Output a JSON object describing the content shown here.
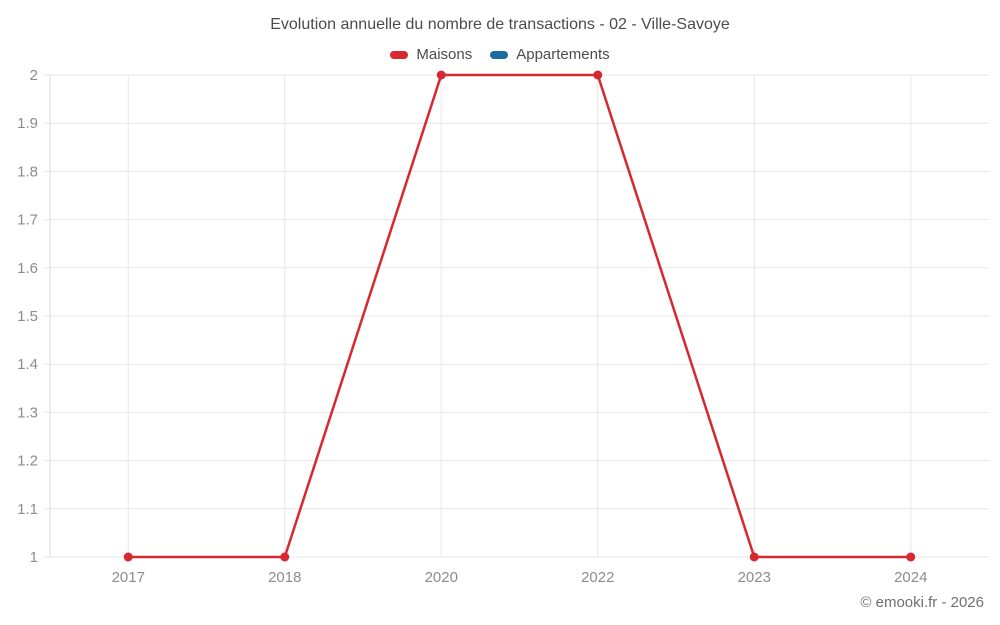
{
  "page": {
    "title": "Evolution annuelle du nombre de transactions - 02 - Ville-Savoye",
    "footer": "© emooki.fr - 2026"
  },
  "legend": {
    "position": "top",
    "items": [
      {
        "label": "Maisons",
        "color": "#d7282f"
      },
      {
        "label": "Appartements",
        "color": "#1c6d9e"
      }
    ]
  },
  "chart_data": {
    "type": "line",
    "title": "Evolution annuelle du nombre de transactions - 02 - Ville-Savoye",
    "categories": [
      "2017",
      "2018",
      "2020",
      "2022",
      "2023",
      "2024"
    ],
    "series": [
      {
        "name": "Maisons",
        "color": "#d7282f",
        "values": [
          1,
          1,
          2,
          2,
          1,
          1
        ]
      },
      {
        "name": "Appartements",
        "color": "#1c6d9e",
        "values": []
      }
    ],
    "xlabel": "",
    "ylabel": "",
    "ylim": [
      1,
      2
    ],
    "y_ticks": {
      "values": [
        1,
        1.1,
        1.2,
        1.3,
        1.4,
        1.5,
        1.6,
        1.7,
        1.8,
        1.9,
        2
      ],
      "labels": [
        "1",
        "1.1",
        "1.2",
        "1.3",
        "1.4",
        "1.5",
        "1.6",
        "1.7",
        "1.8",
        "1.9",
        "2"
      ]
    },
    "grid": true,
    "legend_position": "top",
    "marker": "circle",
    "colors": {
      "grid": "#e7e7e7",
      "axis_line": "#d9d9d9",
      "tick_text": "#8c8c8c",
      "title_text": "#4c4c4c",
      "footer_text": "#707070"
    }
  }
}
